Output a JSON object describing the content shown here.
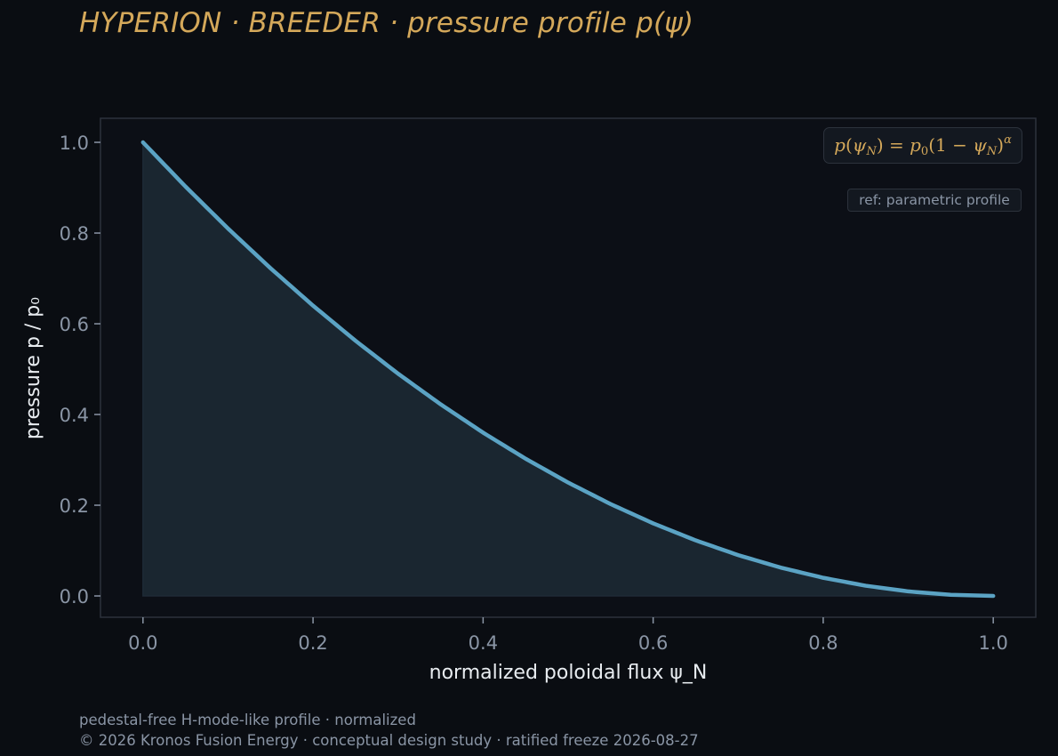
{
  "header": {
    "title": "HYPERION · BREEDER  ·  pressure profile p(ψ)"
  },
  "legend": {
    "formula_text": "p(ψN) = p0(1 − ψN)α",
    "ref_text": "ref: parametric profile"
  },
  "footer": {
    "note": "pedestal-free H-mode-like profile · normalized",
    "copyright": "© 2026 Kronos Fusion Energy · conceptual design study · ratified freeze 2026-08-27"
  },
  "colors": {
    "background": "#0a0d12",
    "plot_area": "#0c0f16",
    "title": "#d4a85a",
    "curve": "#5ba3c4",
    "fill": "#1a2630",
    "axis_text": "#8a95a5",
    "label_text": "#e8ecf0",
    "spine": "#2c323c"
  },
  "chart_data": {
    "type": "area",
    "title": "HYPERION · BREEDER  ·  pressure profile p(ψ)",
    "xlabel": "normalized poloidal flux ψ_N",
    "ylabel": "pressure p / p₀",
    "xlim": [
      -0.05,
      1.05
    ],
    "ylim": [
      -0.047,
      1.053
    ],
    "xticks": [
      0.0,
      0.2,
      0.4,
      0.6,
      0.8,
      1.0
    ],
    "yticks": [
      0.0,
      0.2,
      0.4,
      0.6,
      0.8,
      1.0
    ],
    "xtick_labels": [
      "0.0",
      "0.2",
      "0.4",
      "0.6",
      "0.8",
      "1.0"
    ],
    "ytick_labels": [
      "0.0",
      "0.2",
      "0.4",
      "0.6",
      "0.8",
      "1.0"
    ],
    "grid": false,
    "legend_position": "top-right",
    "series": [
      {
        "x": [
          0.0,
          0.05,
          0.1,
          0.15,
          0.2,
          0.25,
          0.3,
          0.35,
          0.4,
          0.45,
          0.5,
          0.55,
          0.6,
          0.65,
          0.7,
          0.75,
          0.8,
          0.85,
          0.9,
          0.95,
          1.0
        ],
        "y": [
          1.0,
          0.9025,
          0.81,
          0.7225,
          0.64,
          0.5625,
          0.49,
          0.4225,
          0.36,
          0.3025,
          0.25,
          0.2025,
          0.16,
          0.1225,
          0.09,
          0.0625,
          0.04,
          0.0225,
          0.01,
          0.0025,
          0.0
        ]
      }
    ]
  }
}
